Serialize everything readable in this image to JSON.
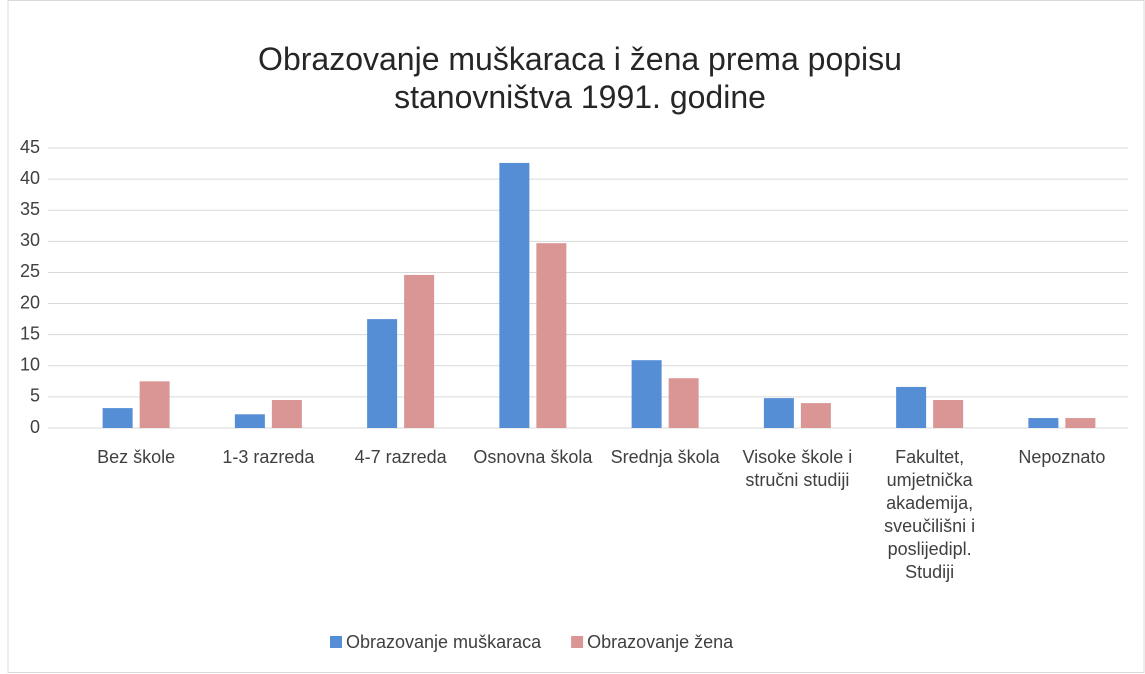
{
  "chart_data": {
    "type": "bar",
    "title": "Obrazovanje muškaraca i žena prema popisu stanovništva 1991. godine",
    "categories": [
      "Bez škole",
      "1-3 razreda",
      "4-7 razreda",
      "Osnovna škola",
      "Srednja škola",
      "Visoke škole i stručni studiji",
      "Fakultet, umjetnička akademija, sveučilišni i poslijedipl. Studiji",
      "Nepoznato"
    ],
    "series": [
      {
        "name": "Obrazovanje muškaraca",
        "color": "#558ed5",
        "values": [
          3.2,
          2.2,
          17.5,
          42.6,
          10.9,
          4.8,
          6.6,
          1.6
        ]
      },
      {
        "name": "Obrazovanje žena",
        "color": "#d99694",
        "values": [
          7.5,
          4.5,
          24.6,
          29.7,
          8.0,
          4.0,
          4.5,
          1.6
        ]
      }
    ],
    "ylim": [
      0,
      45
    ],
    "yticks": [
      0,
      5,
      10,
      15,
      20,
      25,
      30,
      35,
      40,
      45
    ],
    "grid": true,
    "legend": "bottom"
  }
}
